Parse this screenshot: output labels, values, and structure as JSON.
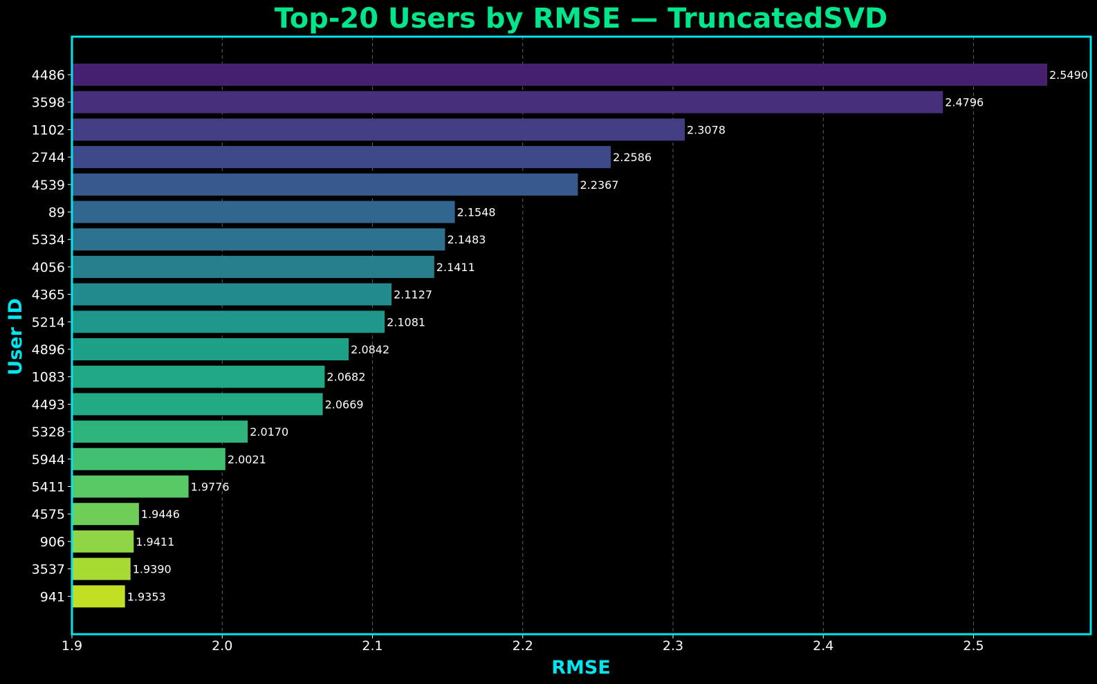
{
  "chart_data": {
    "type": "bar",
    "orientation": "horizontal",
    "title": "Top-20 Users by RMSE — TruncatedSVD",
    "xlabel": "RMSE",
    "ylabel": "User ID",
    "xlim": [
      1.9,
      2.578
    ],
    "xticks": [
      "1.9",
      "2.0",
      "2.1",
      "2.2",
      "2.3",
      "2.4",
      "2.5"
    ],
    "xtick_values": [
      1.9,
      2.0,
      2.1,
      2.2,
      2.3,
      2.4,
      2.5
    ],
    "grid": "x-dashed",
    "categories": [
      "4486",
      "3598",
      "1102",
      "2744",
      "4539",
      "89",
      "5334",
      "4056",
      "4365",
      "5214",
      "4896",
      "1083",
      "4493",
      "5328",
      "5944",
      "5411",
      "4575",
      "906",
      "3537",
      "941"
    ],
    "values": [
      2.549,
      2.4796,
      2.3078,
      2.2586,
      2.2367,
      2.1548,
      2.1483,
      2.1411,
      2.1127,
      2.1081,
      2.0842,
      2.0682,
      2.0669,
      2.017,
      2.0021,
      1.9776,
      1.9446,
      1.9411,
      1.939,
      1.9353
    ],
    "value_labels": [
      "2.5490",
      "2.4796",
      "2.3078",
      "2.2586",
      "2.2367",
      "2.1548",
      "2.1483",
      "2.1411",
      "2.1127",
      "2.1081",
      "2.0842",
      "2.0682",
      "2.0669",
      "2.0170",
      "2.0021",
      "1.9776",
      "1.9446",
      "1.9411",
      "1.9390",
      "1.9353"
    ],
    "colors": [
      "#482072",
      "#472f7d",
      "#433d84",
      "#3e4989",
      "#38598c",
      "#31668e",
      "#2c728e",
      "#277f8e",
      "#238a8d",
      "#1f978b",
      "#1fa187",
      "#22a884",
      "#23a983",
      "#2eb37c",
      "#43bf71",
      "#58c765",
      "#6ece58",
      "#8ed645",
      "#a8db34",
      "#c2df23"
    ],
    "frame_color": "#00e5ee",
    "title_color": "#00e68a"
  }
}
